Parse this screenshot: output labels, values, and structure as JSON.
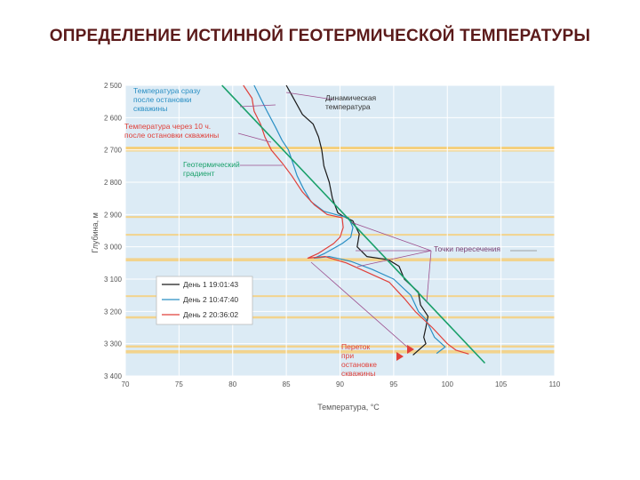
{
  "slide": {
    "title": "ОПРЕДЕЛЕНИЕ ИСТИННОЙ ГЕОТЕРМИЧЕСКОЙ ТЕМПЕРАТУРЫ"
  },
  "colors": {
    "dynamic": "#1a1a1a",
    "day2_1047": "#2a8fc4",
    "day2_2036": "#e0403a",
    "gradient": "#19a06a",
    "bands": "#f6cf7a",
    "plot_bg": "#dcebf5",
    "grid": "#ffffff",
    "guide": "#9c4f8e"
  },
  "chart_data": {
    "type": "line",
    "xlabel": "Температура, °С",
    "ylabel": "Глубина, м",
    "xlim": [
      70,
      110
    ],
    "ylim": [
      3400,
      2500
    ],
    "x_ticks": [
      "70",
      "75",
      "80",
      "85",
      "90",
      "95",
      "100",
      "105",
      "110"
    ],
    "y_ticks": [
      "2 500",
      "2 600",
      "2 700",
      "2 800",
      "2 900",
      "3 000",
      "3 100",
      "3 200",
      "3 300",
      "3 400"
    ],
    "grid": true,
    "legend_position": "lower-left",
    "bands": [
      [
        2690,
        2700
      ],
      [
        2690,
        2705
      ],
      [
        2905,
        2910
      ],
      [
        2960,
        2965
      ],
      [
        3035,
        3045
      ],
      [
        3150,
        3155
      ],
      [
        3215,
        3222
      ],
      [
        3305,
        3312
      ],
      [
        3320,
        3330
      ]
    ],
    "annotations": {
      "dynamic": "Динамическая температура",
      "after_shutin": "Температура сразу после остановки скважины",
      "after_10h": "Температура через 10 ч. после остановки скважины",
      "gradient": "Геотермический градиент",
      "crossings": "Точки пересечения",
      "crossflow": "Переток при остановке скважины"
    },
    "legend": [
      {
        "label": "День 1  19:01:43"
      },
      {
        "label": "День 2  10:47:40"
      },
      {
        "label": "День 2  20:36:02"
      }
    ],
    "series": [
      {
        "points": [
          [
            85,
            2500
          ],
          [
            85.5,
            2530
          ],
          [
            86,
            2560
          ],
          [
            86.5,
            2590
          ],
          [
            87.5,
            2620
          ],
          [
            88,
            2660
          ],
          [
            88.3,
            2700
          ],
          [
            88.5,
            2750
          ],
          [
            89,
            2800
          ],
          [
            89.3,
            2850
          ],
          [
            89.8,
            2895
          ],
          [
            90.3,
            2905
          ],
          [
            91.2,
            2920
          ],
          [
            91.8,
            2960
          ],
          [
            91.6,
            3000
          ],
          [
            92.5,
            3030
          ],
          [
            94.5,
            3040
          ],
          [
            95.5,
            3060
          ],
          [
            96,
            3100
          ],
          [
            97.3,
            3140
          ],
          [
            97.5,
            3180
          ],
          [
            98.2,
            3215
          ],
          [
            98,
            3250
          ],
          [
            97.8,
            3280
          ],
          [
            98,
            3300
          ],
          [
            96.8,
            3335
          ]
        ]
      },
      {
        "points": [
          [
            82,
            2500
          ],
          [
            82.6,
            2540
          ],
          [
            83.2,
            2580
          ],
          [
            84,
            2630
          ],
          [
            84.6,
            2670
          ],
          [
            85.2,
            2700
          ],
          [
            85.6,
            2740
          ],
          [
            86,
            2780
          ],
          [
            86.6,
            2820
          ],
          [
            87.3,
            2860
          ],
          [
            88.5,
            2890
          ],
          [
            89.8,
            2902
          ],
          [
            90.8,
            2910
          ],
          [
            91.2,
            2940
          ],
          [
            91,
            2970
          ],
          [
            90.2,
            2990
          ],
          [
            88.6,
            3020
          ],
          [
            87.6,
            3035
          ],
          [
            89,
            3030
          ],
          [
            91,
            3045
          ],
          [
            93,
            3070
          ],
          [
            95,
            3100
          ],
          [
            96.6,
            3150
          ],
          [
            97.3,
            3200
          ],
          [
            98,
            3225
          ],
          [
            98.8,
            3280
          ],
          [
            99.8,
            3310
          ],
          [
            99,
            3330
          ]
        ]
      },
      {
        "points": [
          [
            81,
            2500
          ],
          [
            81.8,
            2540
          ],
          [
            82,
            2580
          ],
          [
            82.6,
            2620
          ],
          [
            83,
            2660
          ],
          [
            83.6,
            2700
          ],
          [
            84.6,
            2740
          ],
          [
            85.5,
            2780
          ],
          [
            86.5,
            2830
          ],
          [
            87.6,
            2870
          ],
          [
            88.8,
            2900
          ],
          [
            90.2,
            2910
          ],
          [
            90.3,
            2940
          ],
          [
            90,
            2970
          ],
          [
            89.4,
            2990
          ],
          [
            88,
            3020
          ],
          [
            87,
            3035
          ],
          [
            88.6,
            3030
          ],
          [
            90.6,
            3050
          ],
          [
            92.6,
            3080
          ],
          [
            94.6,
            3110
          ],
          [
            96,
            3160
          ],
          [
            97,
            3200
          ],
          [
            98.6,
            3250
          ],
          [
            100,
            3300
          ],
          [
            100.8,
            3320
          ],
          [
            102,
            3332
          ]
        ]
      },
      {
        "points": [
          [
            79,
            2500
          ],
          [
            103.5,
            3360
          ]
        ]
      }
    ]
  }
}
